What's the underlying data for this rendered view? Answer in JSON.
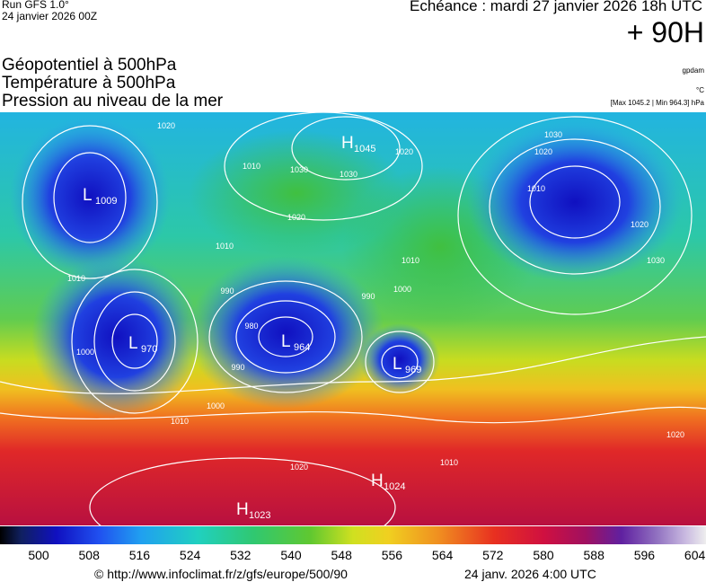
{
  "header": {
    "run": "Run GFS 1.0°",
    "run_date": "24 janvier 2026 00Z",
    "valid": "Echéance : mardi 27 janvier 2026 18h UTC",
    "lead": "+ 90H"
  },
  "fields": [
    "Géopotentiel à 500hPa",
    "Température à 500hPa",
    "Pression au niveau de la mer"
  ],
  "units": [
    "gpdam",
    "°C",
    "[Max 1045.2 | Min 964.3] hPa"
  ],
  "centers": [
    {
      "letter": "L",
      "value": "1009"
    },
    {
      "letter": "H",
      "value": "1045"
    },
    {
      "letter": "L",
      "value": "970"
    },
    {
      "letter": "L",
      "value": "964"
    },
    {
      "letter": "L",
      "value": "969"
    },
    {
      "letter": "H",
      "value": "1024"
    },
    {
      "letter": "H",
      "value": "1023"
    }
  ],
  "contour_labels": [
    "1020",
    "1010",
    "1030",
    "1030",
    "1020",
    "1020",
    "1010",
    "1010",
    "990",
    "1000",
    "990",
    "980",
    "990",
    "1000",
    "1010",
    "1020",
    "1010",
    "1010",
    "1000",
    "1030",
    "1020",
    "1010",
    "1020",
    "1030",
    "1020"
  ],
  "colorbar_ticks": [
    "500",
    "508",
    "516",
    "524",
    "532",
    "540",
    "548",
    "556",
    "564",
    "572",
    "580",
    "588",
    "596",
    "604"
  ],
  "footer": {
    "url": "© http://www.infoclimat.fr/z/gfs/europe/500/90",
    "stamp": "24 janv. 2026  4:00 UTC"
  }
}
